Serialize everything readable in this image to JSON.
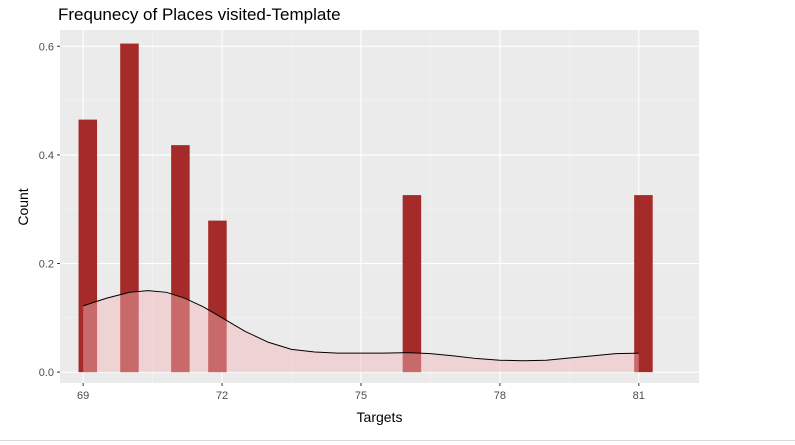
{
  "chart_data": {
    "type": "bar",
    "title": "Frequnecy of Places visited-Template",
    "xlabel": "Targets",
    "ylabel": "Count",
    "xlim": [
      68.5,
      82.3
    ],
    "ylim": [
      -0.02,
      0.63
    ],
    "x_ticks": [
      69,
      72,
      75,
      78,
      81
    ],
    "y_ticks": [
      0.0,
      0.2,
      0.4,
      0.6
    ],
    "y_tick_labels": [
      "0.0",
      "0.2",
      "0.4",
      "0.6"
    ],
    "bin_width": 0.4,
    "bars": [
      {
        "x": 69.1,
        "value": 0.465
      },
      {
        "x": 70.0,
        "value": 0.605
      },
      {
        "x": 71.1,
        "value": 0.418
      },
      {
        "x": 71.9,
        "value": 0.279
      },
      {
        "x": 76.1,
        "value": 0.326
      },
      {
        "x": 81.1,
        "value": 0.326
      }
    ],
    "density_curve": {
      "x": [
        69.0,
        69.5,
        70.0,
        70.4,
        70.8,
        71.2,
        71.6,
        72.0,
        72.5,
        73.0,
        73.5,
        74.0,
        74.5,
        75.0,
        75.5,
        76.0,
        76.5,
        77.0,
        77.5,
        78.0,
        78.5,
        79.0,
        79.5,
        80.0,
        80.5,
        81.0
      ],
      "y": [
        0.122,
        0.136,
        0.147,
        0.15,
        0.147,
        0.136,
        0.12,
        0.1,
        0.075,
        0.055,
        0.042,
        0.037,
        0.035,
        0.035,
        0.035,
        0.036,
        0.034,
        0.03,
        0.025,
        0.022,
        0.021,
        0.022,
        0.026,
        0.03,
        0.034,
        0.035
      ]
    },
    "grid": true,
    "legend": "none",
    "colors": {
      "panel_background": "#ebebeb",
      "grid_major": "#ffffff",
      "grid_minor": "#f5f5f5",
      "bar_fill": "#a52a2a",
      "density_fill": "#f4b6b8",
      "density_line": "#000000",
      "tick_mark": "#333333"
    }
  }
}
